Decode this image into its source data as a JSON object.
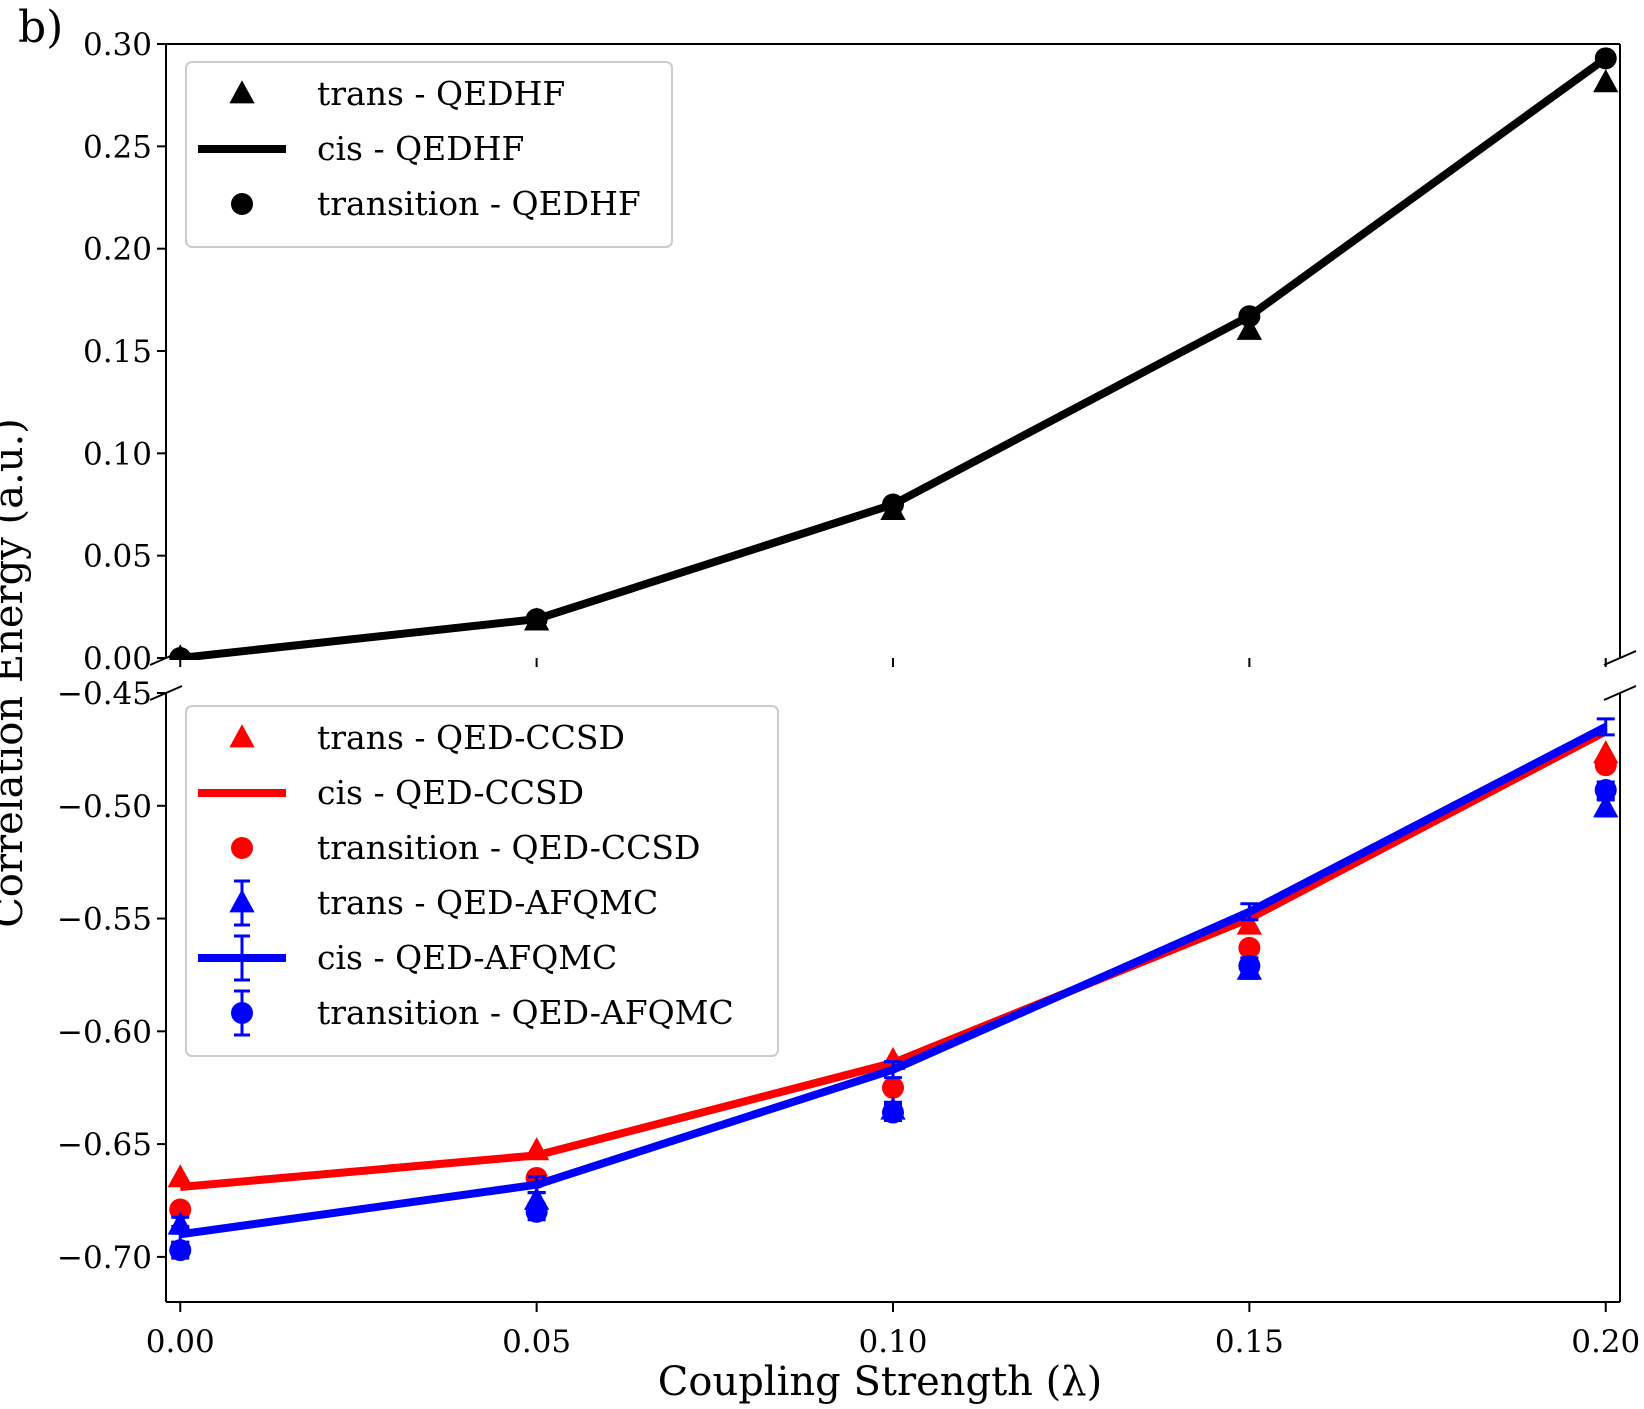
{
  "panel_label": "b)",
  "chart_data": {
    "type": "line",
    "xlabel": "Coupling Strength (λ)",
    "ylabel": "Correlation Energy (a.u.)",
    "x": [
      0.0,
      0.05,
      0.1,
      0.15,
      0.2
    ],
    "x_ticks": [
      "0.00",
      "0.05",
      "0.10",
      "0.15",
      "0.20"
    ],
    "xlim": [
      -0.002,
      0.202
    ],
    "broken_y_axis": true,
    "panels": [
      {
        "name": "top",
        "ylim": [
          0.0,
          0.3
        ],
        "y_ticks": [
          "0.00",
          "0.05",
          "0.10",
          "0.15",
          "0.20",
          "0.25",
          "0.30"
        ],
        "y_tick_values": [
          0.0,
          0.05,
          0.1,
          0.15,
          0.2,
          0.25,
          0.3
        ],
        "legend_position": "upper-left",
        "series": [
          {
            "name": "trans - QEDHF",
            "marker": "triangle",
            "line": false,
            "color": "#000000",
            "values": [
              0.0,
              0.018,
              0.072,
              0.16,
              0.281
            ]
          },
          {
            "name": "cis - QEDHF",
            "marker": "none",
            "line": true,
            "color": "#000000",
            "values": [
              0.0,
              0.019,
              0.075,
              0.167,
              0.293
            ]
          },
          {
            "name": "transition - QEDHF",
            "marker": "circle",
            "line": false,
            "color": "#000000",
            "values": [
              0.0,
              0.019,
              0.075,
              0.167,
              0.293
            ]
          }
        ]
      },
      {
        "name": "bottom",
        "ylim": [
          -0.72,
          -0.45
        ],
        "y_ticks": [
          "−0.45",
          "−0.50",
          "−0.55",
          "−0.60",
          "−0.65",
          "−0.70"
        ],
        "y_tick_values": [
          -0.45,
          -0.5,
          -0.55,
          -0.6,
          -0.65,
          -0.7
        ],
        "legend_position": "upper-left",
        "series": [
          {
            "name": "trans - QED-CCSD",
            "marker": "triangle",
            "line": false,
            "color": "#ff0000",
            "values": [
              -0.665,
              -0.653,
              -0.613,
              -0.553,
              -0.477
            ]
          },
          {
            "name": "cis - QED-CCSD",
            "marker": "none",
            "line": true,
            "color": "#ff0000",
            "values": [
              -0.669,
              -0.655,
              -0.614,
              -0.55,
              -0.467
            ]
          },
          {
            "name": "transition - QED-CCSD",
            "marker": "circle",
            "line": false,
            "color": "#ff0000",
            "values": [
              -0.679,
              -0.665,
              -0.625,
              -0.563,
              -0.482
            ]
          },
          {
            "name": "trans - QED-AFQMC",
            "marker": "triangle",
            "line": false,
            "errorbar": true,
            "color": "#0000ff",
            "values": [
              -0.686,
              -0.675,
              -0.635,
              -0.573,
              -0.501
            ]
          },
          {
            "name": "cis - QED-AFQMC",
            "marker": "none",
            "line": true,
            "errorbar": true,
            "color": "#0000ff",
            "values": [
              -0.69,
              -0.668,
              -0.617,
              -0.547,
              -0.465
            ]
          },
          {
            "name": "transition - QED-AFQMC",
            "marker": "circle",
            "line": false,
            "errorbar": true,
            "color": "#0000ff",
            "values": [
              -0.697,
              -0.68,
              -0.636,
              -0.571,
              -0.493
            ]
          }
        ]
      }
    ]
  }
}
